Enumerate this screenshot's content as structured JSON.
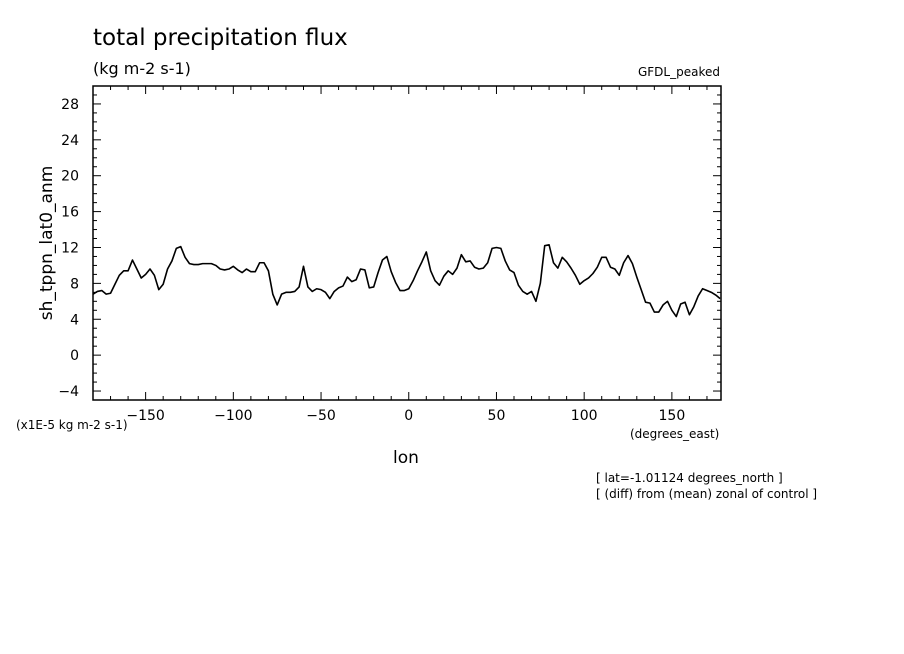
{
  "chart_data": {
    "type": "line",
    "title": "total precipitation flux",
    "units": "(kg m-2 s-1)",
    "model": "GFDL_peaked",
    "ylabel": "sh_tppn_lat0_anm",
    "yscale_note": "(x1E-5 kg m-2 s-1)",
    "xlabel": "lon",
    "xunits": "(degrees_east)",
    "notes": [
      "[ lat=-1.01124 degrees_north ]",
      "[ (diff) from (mean) zonal of control ]"
    ],
    "xlim": [
      -180,
      178
    ],
    "ylim": [
      -5,
      30
    ],
    "xticks": [
      -150,
      -100,
      -50,
      0,
      50,
      100,
      150
    ],
    "yticks": [
      -4,
      0,
      4,
      8,
      12,
      16,
      20,
      24,
      28
    ],
    "grid": false,
    "series": [
      {
        "x": [
          -180,
          -177.5,
          -175,
          -172.5,
          -170,
          -167.5,
          -165,
          -162.5,
          -160,
          -157.5,
          -155,
          -152.5,
          -150,
          -147.5,
          -145,
          -142.5,
          -140,
          -137.5,
          -135,
          -132.5,
          -130,
          -127.5,
          -125,
          -122.5,
          -120,
          -117.5,
          -115,
          -112.5,
          -110,
          -107.5,
          -105,
          -102.5,
          -100,
          -97.5,
          -95,
          -92.5,
          -90,
          -87.5,
          -85,
          -82.5,
          -80,
          -77.5,
          -75,
          -72.5,
          -70,
          -67.5,
          -65,
          -62.5,
          -60,
          -57.5,
          -55,
          -52.5,
          -50,
          -47.5,
          -45,
          -42.5,
          -40,
          -37.5,
          -35,
          -32.5,
          -30,
          -27.5,
          -25,
          -22.5,
          -20,
          -17.5,
          -15,
          -12.5,
          -10,
          -7.5,
          -5,
          -2.5,
          0,
          2.5,
          5,
          7.5,
          10,
          12.5,
          15,
          17.5,
          20,
          22.5,
          25,
          27.5,
          30,
          32.5,
          35,
          37.5,
          40,
          42.5,
          45,
          47.5,
          50,
          52.5,
          55,
          57.5,
          60,
          62.5,
          65,
          67.5,
          70,
          72.5,
          75,
          77.5,
          80,
          82.5,
          85,
          87.5,
          90,
          92.5,
          95,
          97.5,
          100,
          102.5,
          105,
          107.5,
          110,
          112.5,
          115,
          117.5,
          120,
          122.5,
          125,
          127.5,
          130,
          132.5,
          135,
          137.5,
          140,
          142.5,
          145,
          147.5,
          150,
          152.5,
          155,
          157.5,
          160,
          162.5,
          165,
          167.5,
          170,
          172.5,
          175,
          177.5
        ],
        "y": [
          6.8,
          7.1,
          7.2,
          6.8,
          6.9,
          7.9,
          8.9,
          9.4,
          9.4,
          10.6,
          9.6,
          8.6,
          9.0,
          9.6,
          8.9,
          7.3,
          7.9,
          9.6,
          10.5,
          11.9,
          12.1,
          10.9,
          10.2,
          10.1,
          10.1,
          10.2,
          10.2,
          10.2,
          10.0,
          9.6,
          9.5,
          9.6,
          9.9,
          9.5,
          9.2,
          9.6,
          9.3,
          9.3,
          10.3,
          10.3,
          9.4,
          6.8,
          5.6,
          6.8,
          7.0,
          7.0,
          7.1,
          7.6,
          9.9,
          7.6,
          7.1,
          7.4,
          7.3,
          7.0,
          6.3,
          7.1,
          7.5,
          7.7,
          8.7,
          8.2,
          8.4,
          9.6,
          9.5,
          7.5,
          7.6,
          9.2,
          10.6,
          11.0,
          9.3,
          8.1,
          7.2,
          7.2,
          7.4,
          8.3,
          9.4,
          10.4,
          11.5,
          9.4,
          8.3,
          7.8,
          8.8,
          9.4,
          9.0,
          9.7,
          11.2,
          10.4,
          10.5,
          9.8,
          9.6,
          9.7,
          10.3,
          11.9,
          12.0,
          11.9,
          10.5,
          9.5,
          9.2,
          7.8,
          7.1,
          6.8,
          7.1,
          6.0,
          8.0,
          12.2,
          12.3,
          10.3,
          9.7,
          10.9,
          10.4,
          9.7,
          8.9,
          7.9,
          8.3,
          8.6,
          9.1,
          9.8,
          10.9,
          10.9,
          9.8,
          9.6,
          8.9,
          10.3,
          11.1,
          10.2,
          8.7,
          7.3,
          5.9,
          5.8,
          4.8,
          4.8,
          5.6,
          6.0,
          5.0,
          4.3,
          5.7,
          5.9,
          4.5,
          5.4,
          6.6,
          7.4,
          7.2,
          7.0,
          6.7,
          6.3
        ]
      }
    ]
  }
}
